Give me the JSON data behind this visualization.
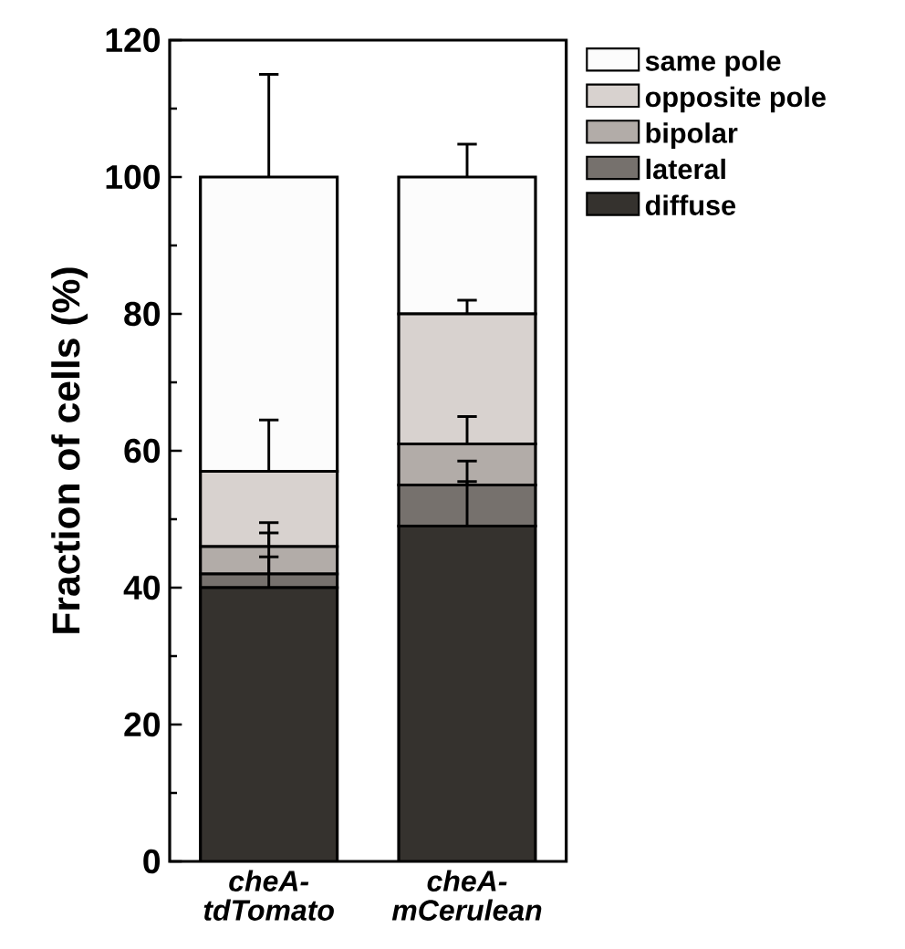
{
  "chart_data": {
    "type": "bar",
    "stacked": true,
    "categories": [
      "cheA-tdTomato",
      "cheA-mCerulean"
    ],
    "ylabel": "Fraction of cells (%)",
    "ylim": [
      0,
      120
    ],
    "yticks": [
      0,
      20,
      40,
      60,
      80,
      100,
      120
    ],
    "legend": "top right",
    "series": [
      {
        "name": "diffuse",
        "color": "#35322e",
        "values": [
          40,
          49
        ],
        "errors": [
          [
            40,
            44.5
          ],
          [
            49,
            55.5
          ]
        ]
      },
      {
        "name": "lateral",
        "color": "#76716d",
        "values": [
          2,
          6
        ],
        "errors": [
          [
            42,
            48
          ],
          [
            55,
            58.5
          ]
        ]
      },
      {
        "name": "bipolar",
        "color": "#b2aca8",
        "values": [
          4,
          6
        ],
        "errors": [
          [
            46,
            49.5
          ],
          [
            61,
            65
          ]
        ]
      },
      {
        "name": "opposite pole",
        "color": "#d8d2cf",
        "values": [
          11,
          19
        ],
        "errors": [
          [
            57,
            64.5
          ],
          [
            80,
            82
          ]
        ]
      },
      {
        "name": "same pole",
        "color": "#fcfcfc",
        "values": [
          43,
          20
        ],
        "errors": [
          [
            100,
            115
          ],
          [
            100,
            104.8
          ]
        ]
      }
    ]
  }
}
